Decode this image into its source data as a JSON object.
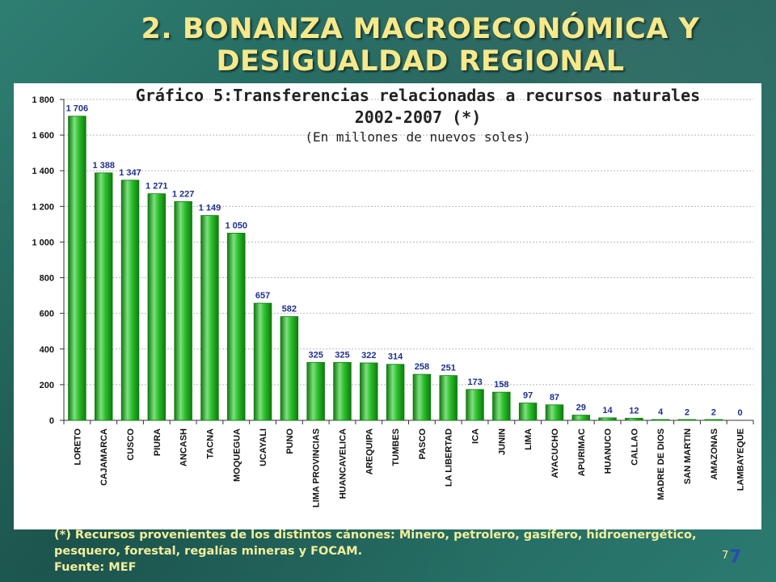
{
  "slide": {
    "title_line1": "2. BONANZA MACROECONÓMICA Y",
    "title_line2": "DESIGUALDAD REGIONAL",
    "footnote_line1": "(*) Recursos provenientes de los distintos cánones: Minero, petrolero, gasífero, hidroenergético,",
    "footnote_line2": "pesquero, forestal, regalías mineras y FOCAM.",
    "footnote_source": "Fuente: MEF",
    "page_number_small": "7",
    "page_number": "7"
  },
  "colors": {
    "bar": "#22b022",
    "bar_light": "#7fe07f",
    "bar_dark": "#0f7a0f",
    "data_label": "#1f2f8f",
    "title": "#f7e88a",
    "gridline": "#b8b8b8"
  },
  "chart_data": {
    "type": "bar",
    "title": "Gráfico 5:Transferencias relacionadas a recursos naturales",
    "title_line2": "2002-2007 (*)",
    "subtitle": "(En millones de nuevos soles)",
    "xlabel": "",
    "ylabel": "",
    "ylim": [
      0,
      1800
    ],
    "yticks": [
      0,
      200,
      400,
      600,
      800,
      1000,
      1200,
      1400,
      1600,
      1800
    ],
    "ytick_labels": [
      "0",
      "200",
      "400",
      "600",
      "800",
      "1 000",
      "1 200",
      "1 400",
      "1 600",
      "1 800"
    ],
    "grid": true,
    "categories": [
      "LORETO",
      "CAJAMARCA",
      "CUSCO",
      "PIURA",
      "ANCASH",
      "TACNA",
      "MOQUEGUA",
      "UCAYALI",
      "PUNO",
      "LIMA PROVINCIAS",
      "HUANCAVELICA",
      "AREQUIPA",
      "TUMBES",
      "PASCO",
      "LA LIBERTAD",
      "ICA",
      "JUNIN",
      "LIMA",
      "AYACUCHO",
      "APURIMAC",
      "HUANUCO",
      "CALLAO",
      "MADRE DE DIOS",
      "SAN MARTIN",
      "AMAZONAS",
      "LAMBAYEQUE"
    ],
    "values": [
      1706,
      1388,
      1347,
      1271,
      1227,
      1149,
      1050,
      657,
      582,
      325,
      325,
      322,
      314,
      258,
      251,
      173,
      158,
      97,
      87,
      29,
      14,
      12,
      4,
      2,
      2,
      0
    ],
    "value_labels": [
      "1 706",
      "1 388",
      "1 347",
      "1 271",
      "1 227",
      "1 149",
      "1 050",
      "657",
      "582",
      "325",
      "325",
      "322",
      "314",
      "258",
      "251",
      "173",
      "158",
      "97",
      "87",
      "29",
      "14",
      "12",
      "4",
      "2",
      "2",
      "0"
    ]
  }
}
